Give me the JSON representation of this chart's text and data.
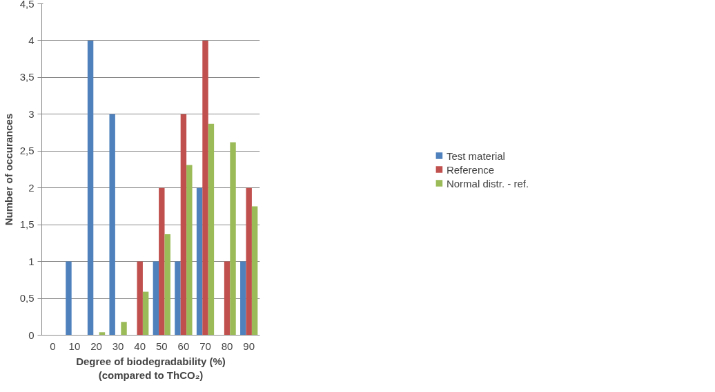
{
  "chart_data": {
    "type": "bar",
    "xlabel": "Degree of biodegradability (%)\n(compared to ThCO₂)",
    "ylabel": "Number of occurances",
    "categories": [
      "0",
      "10",
      "20",
      "30",
      "40",
      "50",
      "60",
      "70",
      "80",
      "90"
    ],
    "series": [
      {
        "name": "Test material",
        "color": "#4f81bd",
        "values": [
          0,
          1,
          4,
          3,
          0,
          1,
          1,
          2,
          0,
          1
        ]
      },
      {
        "name": "Reference",
        "color": "#c0504d",
        "values": [
          0,
          0,
          0,
          0,
          1,
          2,
          3,
          4,
          1,
          2
        ]
      },
      {
        "name": "Normal distr. - ref.",
        "color": "#9bbb59",
        "values": [
          0,
          0,
          0.04,
          0.18,
          0.59,
          1.37,
          2.31,
          2.87,
          2.62,
          1.75
        ]
      }
    ],
    "ylim": [
      0,
      4.5
    ],
    "yticks": [
      0,
      {
        "value": 0.5,
        "label": "0,5"
      },
      1,
      {
        "value": 1.5,
        "label": "1,5"
      },
      2,
      {
        "value": 2.5,
        "label": "2,5"
      },
      3,
      {
        "value": 3.5,
        "label": "3,5"
      },
      4,
      {
        "value": 4.5,
        "label": "4,5"
      }
    ],
    "grid": "y",
    "legend": "right"
  }
}
